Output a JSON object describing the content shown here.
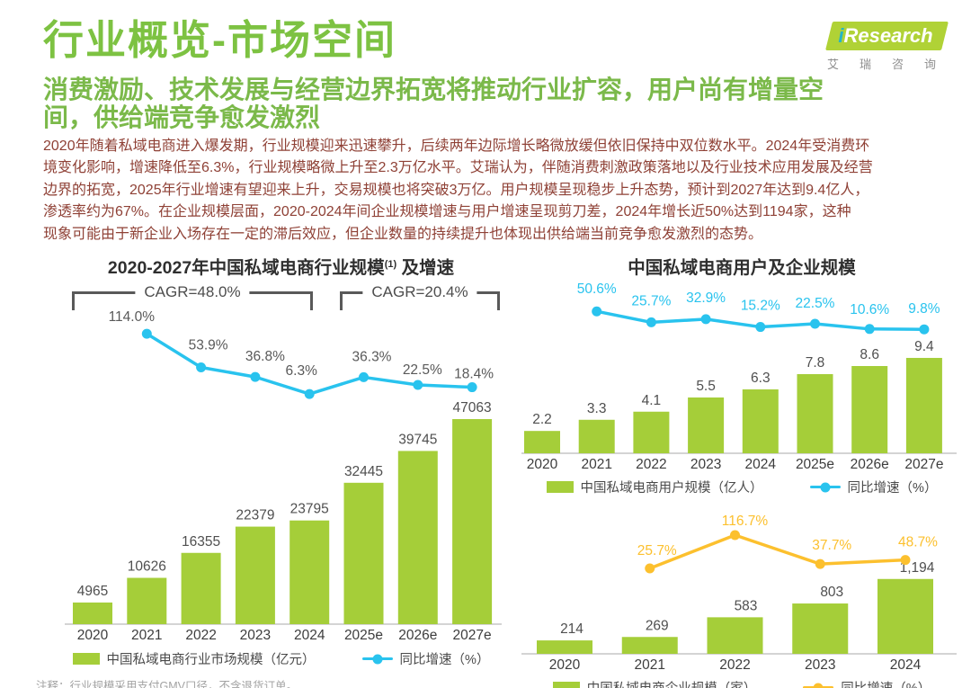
{
  "page": {
    "title": "行业概览-市场空间"
  },
  "logo": {
    "brand_i": "i",
    "brand_rest": "Research",
    "subtext": "艾瑞咨询"
  },
  "headline": {
    "lines": [
      "消费激励、技术发展与经营边界拓宽将推动行业扩容，用户尚有增量空",
      "间，供给端竞争愈发激烈"
    ]
  },
  "body": {
    "lines": [
      "2020年随着私域电商进入爆发期，行业规模迎来迅速攀升，后续两年边际增长略微放缓但依旧保持中双位数水平。2024年受消费环",
      "境变化影响，增速降低至6.3%，行业规模略微上升至2.3万亿水平。艾瑞认为，伴随消费刺激政策落地以及行业技术应用发展及经营",
      "边界的拓宽，2025年行业增速有望迎来上升，交易规模也将突破3万亿。用户规模呈现稳步上升态势，预计到2027年达到9.4亿人，",
      "渗透率约为67%。在企业规模层面，2020-2024年间企业规模增速与用户增速呈现剪刀差，2024年增长近50%达到1194家，这种",
      "现象可能由于新企业入场存在一定的滞后效应，但企业数量的持续提升也体现出供给端当前竞争愈发激烈的态势。"
    ]
  },
  "footnote": "注释：行业规模采用支付GMV口径，不含退货订单。",
  "colors": {
    "title_green": "#7dc242",
    "headline_green": "#7bb94a",
    "body_red": "#8f4136",
    "bar_green": "#a5ce39",
    "line_cyan": "#29c3ee",
    "line_yellow": "#fcc02e",
    "label_gray": "#595959",
    "axis_gray": "#c6c6c6",
    "logo_green": "#b0d236",
    "logo_cyan": "#23b5c8",
    "footnote_gray": "#a3a3a3"
  },
  "chart_data": [
    {
      "id": "market",
      "type": "bar+line",
      "title": "2020-2027年中国私域电商行业规模",
      "title_sup": "(1)",
      "title_suffix": "及增速",
      "categories": [
        "2020",
        "2021",
        "2022",
        "2023",
        "2024",
        "2025e",
        "2026e",
        "2027e"
      ],
      "bars": {
        "name": "中国私域电商行业市场规模（亿元）",
        "values": [
          4965,
          10626,
          16355,
          22379,
          23795,
          32445,
          39745,
          47063
        ],
        "labels": [
          "4965",
          "10626",
          "16355",
          "22379",
          "23795",
          "32445",
          "39745",
          "47063"
        ]
      },
      "line": {
        "name": "同比增速（%）",
        "values": [
          null,
          114.0,
          53.9,
          36.8,
          6.3,
          36.3,
          22.5,
          18.4
        ],
        "labels": [
          "114.0%",
          "53.9%",
          "36.8%",
          "6.3%",
          "36.3%",
          "22.5%",
          "18.4%"
        ]
      },
      "annotations": [
        {
          "label": "CAGR=48.0%",
          "span": "2020-2024"
        },
        {
          "label": "CAGR=20.4%",
          "span": "2025e-2027e"
        }
      ],
      "legend_position": "bottom"
    },
    {
      "id": "users",
      "type": "bar+line",
      "title": "中国私域电商用户及企业规模",
      "categories": [
        "2020",
        "2021",
        "2022",
        "2023",
        "2024",
        "2025e",
        "2026e",
        "2027e"
      ],
      "bars": {
        "name": "中国私域电商用户规模（亿人）",
        "values": [
          2.2,
          3.3,
          4.1,
          5.5,
          6.3,
          7.8,
          8.6,
          9.4
        ],
        "labels": [
          "2.2",
          "3.3",
          "4.1",
          "5.5",
          "6.3",
          "7.8",
          "8.6",
          "9.4"
        ]
      },
      "line": {
        "name": "同比增速（%）",
        "values": [
          null,
          50.6,
          25.7,
          32.9,
          15.2,
          22.5,
          10.6,
          9.8
        ],
        "labels": [
          "50.6%",
          "25.7%",
          "32.9%",
          "15.2%",
          "22.5%",
          "10.6%",
          "9.8%"
        ]
      },
      "legend_position": "bottom"
    },
    {
      "id": "companies",
      "type": "bar+line",
      "title": "",
      "categories": [
        "2020",
        "2021",
        "2022",
        "2023",
        "2024"
      ],
      "bars": {
        "name": "中国私域电商企业规模（家）",
        "values": [
          214,
          269,
          583,
          803,
          1194
        ],
        "labels": [
          "214",
          "269",
          "583",
          "803",
          "1,194"
        ]
      },
      "line": {
        "name": "同比增速（%）",
        "values": [
          null,
          25.7,
          116.7,
          37.7,
          48.7
        ],
        "labels": [
          "25.7%",
          "116.7%",
          "37.7%",
          "48.7%"
        ]
      },
      "legend_position": "bottom"
    }
  ]
}
